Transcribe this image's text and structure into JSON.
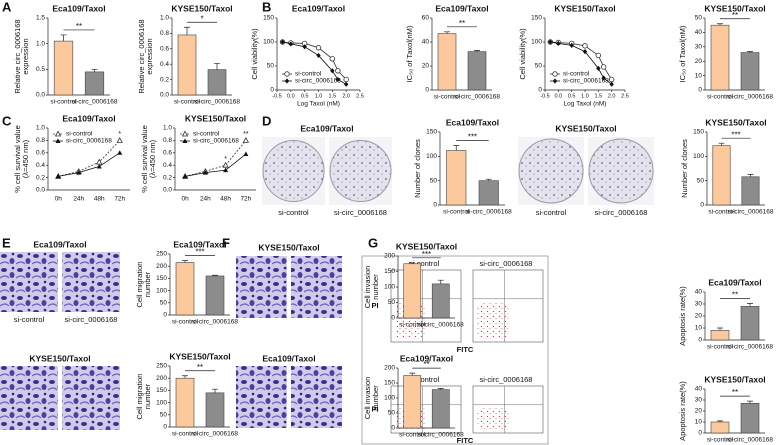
{
  "figure": {
    "panel_labels": [
      "A",
      "B",
      "C",
      "D",
      "E",
      "F",
      "G"
    ],
    "image_groups": [
      {
        "title": "Eca109/Taxol",
        "captions": [
          "si-control",
          "si-circ_0006168"
        ]
      },
      {
        "title": "KYSE150/Taxol",
        "captions": [
          "si-control",
          "si-circ_0006168"
        ]
      },
      {
        "title": "Eca109/Taxol",
        "captions": [
          "si-control",
          "si-circ_0006168"
        ]
      },
      {
        "title": "KYSE150/Taxol"
      },
      {
        "title": "KYSE150/Taxol"
      },
      {
        "title": "Eca109/Taxol"
      },
      {
        "captions": [
          "si-control",
          "si-circ_0006168"
        ],
        "y_label": "PI",
        "x_label": "FITC"
      },
      {
        "captions": [
          "si-control",
          "si-circ_0006168"
        ],
        "y_label": "PI",
        "x_label": "FITC"
      }
    ]
  },
  "chart_data": [
    {
      "type": "bar",
      "title": "Eca109/Taxol",
      "ylabel": [
        "Relative circ_0006168",
        "expression"
      ],
      "categories": [
        "si-control",
        "si-circ_0006168"
      ],
      "values": [
        1.05,
        0.45
      ],
      "errors": [
        0.12,
        0.05
      ],
      "colors": [
        "#fbc99b",
        "#8c8c8c"
      ],
      "ylim": [
        0,
        1.5
      ],
      "yticks": [
        {
          "value": 0,
          "label": "0.0"
        },
        0.5,
        {
          "value": 1,
          "label": "1.0"
        },
        1.5
      ],
      "annotation": "**"
    },
    {
      "type": "bar",
      "title": "KYSE150/Taxol",
      "ylabel": [
        "Relative circ_0006168",
        "expression"
      ],
      "categories": [
        "si-control",
        "si-circ_0006168"
      ],
      "values": [
        0.78,
        0.33
      ],
      "errors": [
        0.1,
        0.08
      ],
      "colors": [
        "#fbc99b",
        "#8c8c8c"
      ],
      "ylim": [
        0,
        1.0
      ],
      "yticks": [
        {
          "value": 0,
          "label": "0.0"
        },
        0.2,
        0.4,
        0.6,
        0.8,
        {
          "value": 1,
          "label": "1.0"
        }
      ],
      "annotation": "*"
    },
    {
      "type": "line",
      "title": "Eca109/Taxol",
      "ylabel": [
        "Cell viability(%)"
      ],
      "xlabel": "Log Taxol (nM)",
      "x": [
        -0.3,
        0,
        0.5,
        1,
        1.5,
        1.7,
        2
      ],
      "series": [
        {
          "name": "si-control",
          "color": "#333333",
          "marker": "circle-open",
          "values": [
            100,
            98,
            97,
            88,
            65,
            40,
            22
          ]
        },
        {
          "name": "si-circ_0006168",
          "color": "#111111",
          "marker": "diamond",
          "values": [
            100,
            96,
            90,
            72,
            40,
            22,
            12
          ]
        }
      ],
      "xlim": [
        -0.5,
        2.5
      ],
      "xticks": [
        -0.5,
        {
          "value": 0,
          "label": "0.0"
        },
        0.5,
        {
          "value": 1,
          "label": "1.0"
        },
        1.5,
        {
          "value": 2,
          "label": "2.0"
        },
        2.5
      ],
      "ylim": [
        0,
        150
      ],
      "yticks": [
        0,
        50,
        100,
        150
      ],
      "legend": "lower left"
    },
    {
      "type": "bar",
      "title": "Eca109/Taxol",
      "ylabel": [
        "IC₅₀ of Taxol(nM)"
      ],
      "categories": [
        "si-control",
        "si-circ_0006168"
      ],
      "values": [
        47,
        32
      ],
      "errors": [
        1.5,
        1
      ],
      "colors": [
        "#fbc99b",
        "#8c8c8c"
      ],
      "ylim": [
        0,
        60
      ],
      "yticks": [
        0,
        20,
        40,
        60
      ],
      "annotation": "**"
    },
    {
      "type": "line",
      "title": "KYSE150/Taxol",
      "ylabel": [
        "Cell viability(%)"
      ],
      "xlabel": "Log Taxol (nM)",
      "x": [
        -0.3,
        0,
        0.5,
        1,
        1.5,
        1.7,
        2
      ],
      "series": [
        {
          "name": "si-control",
          "color": "#333333",
          "marker": "circle-open",
          "values": [
            100,
            99,
            97,
            92,
            72,
            48,
            22
          ]
        },
        {
          "name": "si-circ_0006168",
          "color": "#111111",
          "marker": "diamond",
          "values": [
            100,
            97,
            93,
            80,
            45,
            25,
            12
          ]
        }
      ],
      "xlim": [
        -0.5,
        2.5
      ],
      "xticks": [
        -0.5,
        {
          "value": 0,
          "label": "0.0"
        },
        0.5,
        {
          "value": 1,
          "label": "1.0"
        },
        1.5,
        {
          "value": 2,
          "label": "2.0"
        },
        2.5
      ],
      "ylim": [
        0,
        150
      ],
      "yticks": [
        0,
        50,
        100,
        150
      ],
      "legend": "lower left"
    },
    {
      "type": "bar",
      "title": "KYSE150/Taxol",
      "ylabel": [
        "IC₅₀ of Taxol(nM)"
      ],
      "categories": [
        "si-control",
        "si-circ_0006168"
      ],
      "values": [
        45,
        26
      ],
      "errors": [
        1,
        0.8
      ],
      "colors": [
        "#fbc99b",
        "#8c8c8c"
      ],
      "ylim": [
        0,
        50
      ],
      "yticks": [
        0,
        10,
        20,
        30,
        40,
        50
      ],
      "annotation": "**"
    },
    {
      "type": "line",
      "title": "Eca109/Taxol",
      "ylabel": [
        "% cell survival value",
        "(λ=450 nm)"
      ],
      "categories": [
        "0h",
        "24h",
        "48h",
        "72h"
      ],
      "series": [
        {
          "name": "si-control",
          "color": "#333333",
          "marker": "triangle-open",
          "line_style": "dashed",
          "values": [
            0.22,
            0.3,
            0.45,
            0.8
          ]
        },
        {
          "name": "si-circ_0006168",
          "color": "#111111",
          "marker": "triangle",
          "values": [
            0.22,
            0.28,
            0.38,
            0.6
          ]
        }
      ],
      "ylim": [
        0,
        1.0
      ],
      "yticks": [
        {
          "value": 0,
          "label": "0.0"
        },
        0.2,
        0.4,
        0.6,
        0.8,
        {
          "value": 1,
          "label": "1.0"
        }
      ],
      "legend": "upper left",
      "annotations": [
        {
          "text": "*",
          "x": "72h"
        }
      ]
    },
    {
      "type": "line",
      "title": "KYSE150/Taxol",
      "ylabel": [
        "% cell survival value",
        "(λ=450 nm)"
      ],
      "categories": [
        "0h",
        "24h",
        "48h",
        "72h"
      ],
      "series": [
        {
          "name": "si-control",
          "color": "#333333",
          "marker": "triangle-open",
          "line_style": "dashed",
          "values": [
            0.22,
            0.3,
            0.4,
            0.8
          ]
        },
        {
          "name": "si-circ_0006168",
          "color": "#111111",
          "marker": "triangle",
          "values": [
            0.22,
            0.28,
            0.32,
            0.58
          ]
        }
      ],
      "ylim": [
        0,
        1.0
      ],
      "yticks": [
        {
          "value": 0,
          "label": "0.0"
        },
        0.2,
        0.4,
        0.6,
        0.8,
        {
          "value": 1,
          "label": "1.0"
        }
      ],
      "legend": "upper left",
      "annotations": [
        {
          "text": "*",
          "x": "48h"
        },
        {
          "text": "**",
          "x": "72h"
        }
      ]
    },
    {
      "type": "bar",
      "title": "Eca109/Taxol",
      "ylabel": [
        "Number of clones"
      ],
      "categories": [
        "si-control",
        "si-circ_0006168"
      ],
      "values": [
        112,
        50
      ],
      "errors": [
        10,
        3
      ],
      "colors": [
        "#fbc99b",
        "#8c8c8c"
      ],
      "ylim": [
        0,
        150
      ],
      "yticks": [
        0,
        50,
        100,
        150
      ],
      "annotation": "***"
    },
    {
      "type": "bar",
      "title": "KYSE150/Taxol",
      "ylabel": [
        "Number of clones"
      ],
      "categories": [
        "si-control",
        "si-circ_0006168"
      ],
      "values": [
        122,
        58
      ],
      "errors": [
        5,
        5
      ],
      "colors": [
        "#fbc99b",
        "#8c8c8c"
      ],
      "ylim": [
        0,
        150
      ],
      "yticks": [
        0,
        50,
        100,
        150
      ],
      "annotation": "***"
    },
    {
      "type": "bar",
      "title": "Eca109/Taxol",
      "ylabel": [
        "Cell migration",
        "number"
      ],
      "categories": [
        "si-control",
        "si-circ_0006168"
      ],
      "values": [
        215,
        160
      ],
      "errors": [
        8,
        3
      ],
      "colors": [
        "#fbc99b",
        "#8c8c8c"
      ],
      "ylim": [
        0,
        250
      ],
      "yticks": [
        0,
        50,
        100,
        150,
        200,
        250
      ],
      "annotation": "***"
    },
    {
      "type": "bar",
      "title": "KYSE150/Taxol",
      "ylabel": [
        "Cell migration",
        "number"
      ],
      "categories": [
        "si-control",
        "si-circ_0006168"
      ],
      "values": [
        200,
        140
      ],
      "errors": [
        10,
        15
      ],
      "colors": [
        "#fbc99b",
        "#8c8c8c"
      ],
      "ylim": [
        0,
        250
      ],
      "yticks": [
        0,
        50,
        100,
        150,
        200,
        250
      ],
      "annotation": "**"
    },
    {
      "type": "bar",
      "title": "KYSE150/Taxol",
      "ylabel": [
        "Cell invasion",
        "number"
      ],
      "categories": [
        "si-control",
        "si-circ_0006168"
      ],
      "values": [
        175,
        110
      ],
      "errors": [
        3,
        12
      ],
      "colors": [
        "#fbc99b",
        "#8c8c8c"
      ],
      "ylim": [
        0,
        200
      ],
      "yticks": [
        0,
        50,
        100,
        150,
        200
      ],
      "annotation": "***"
    },
    {
      "type": "bar",
      "title": "Eca109/Taxol",
      "ylabel": [
        "Cell invasion",
        "number"
      ],
      "categories": [
        "si-control",
        "si-circ_0006168"
      ],
      "values": [
        175,
        128
      ],
      "errors": [
        8,
        4
      ],
      "colors": [
        "#fbc99b",
        "#8c8c8c"
      ],
      "ylim": [
        0,
        200
      ],
      "yticks": [
        0,
        50,
        100,
        150,
        200
      ],
      "annotation": "**"
    },
    {
      "type": "bar",
      "title": "Eca109/Taxol",
      "ylabel": [
        "Apoptosis rate(%)"
      ],
      "categories": [
        "si-control",
        "si-circ_0006168"
      ],
      "values": [
        8,
        28
      ],
      "errors": [
        2,
        2.5
      ],
      "colors": [
        "#fbc99b",
        "#8c8c8c"
      ],
      "ylim": [
        0,
        40
      ],
      "yticks": [
        0,
        10,
        20,
        30,
        40
      ],
      "annotation": "**"
    },
    {
      "type": "bar",
      "title": "KYSE150/Taxol",
      "ylabel": [
        "Apoptosis rate(%)"
      ],
      "categories": [
        "si-control",
        "si-circ_0006168"
      ],
      "values": [
        10,
        27
      ],
      "errors": [
        1,
        2
      ],
      "colors": [
        "#fbc99b",
        "#8c8c8c"
      ],
      "ylim": [
        0,
        40
      ],
      "yticks": [
        0,
        10,
        20,
        30,
        40
      ],
      "annotation": "**"
    }
  ]
}
